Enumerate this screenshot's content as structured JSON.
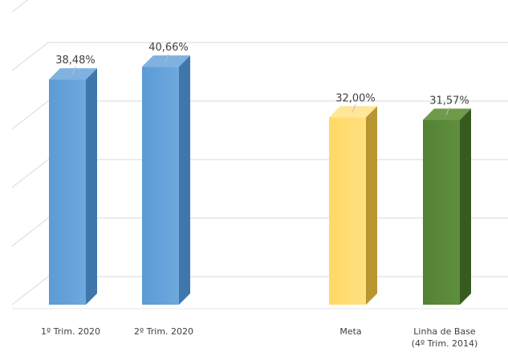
{
  "chart_data": {
    "type": "bar",
    "title": "",
    "xlabel": "",
    "ylabel": "",
    "ylim": [
      0,
      50
    ],
    "grid": true,
    "legend": "none",
    "categories": [
      "1º Trim. 2020",
      "2º Trim. 2020",
      "",
      "Meta",
      "Linha de Base (4º Trim. 2014)"
    ],
    "category_lines": [
      [
        "1º Trim. 2020"
      ],
      [
        "2º Trim. 2020"
      ],
      [],
      [
        "Meta"
      ],
      [
        "Linha de Base",
        "(4º Trim. 2014)"
      ]
    ],
    "values": [
      38.48,
      40.66,
      null,
      32.0,
      31.57
    ],
    "value_labels": [
      "38,48%",
      "40,66%",
      "",
      "32,00%",
      "31,57%"
    ],
    "colors": [
      "#5b9bd5",
      "#5b9bd5",
      "",
      "#ffd966",
      "#548235"
    ]
  }
}
